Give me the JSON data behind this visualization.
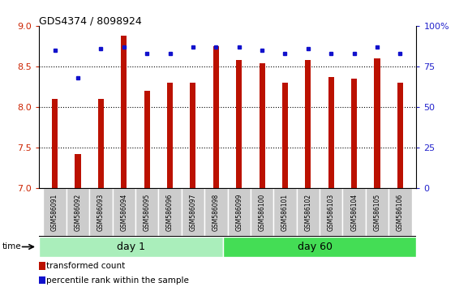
{
  "title": "GDS4374 / 8098924",
  "samples": [
    "GSM586091",
    "GSM586092",
    "GSM586093",
    "GSM586094",
    "GSM586095",
    "GSM586096",
    "GSM586097",
    "GSM586098",
    "GSM586099",
    "GSM586100",
    "GSM586101",
    "GSM586102",
    "GSM586103",
    "GSM586104",
    "GSM586105",
    "GSM586106"
  ],
  "bar_values": [
    8.1,
    7.42,
    8.1,
    8.88,
    8.2,
    8.3,
    8.3,
    8.75,
    8.58,
    8.54,
    8.3,
    8.58,
    8.37,
    8.35,
    8.6,
    8.3
  ],
  "dot_values": [
    85,
    68,
    86,
    87,
    83,
    83,
    87,
    87,
    87,
    85,
    83,
    86,
    83,
    83,
    87,
    83
  ],
  "day1_samples": 8,
  "day60_samples": 8,
  "ylim_left": [
    7,
    9
  ],
  "ylim_right": [
    0,
    100
  ],
  "yticks_left": [
    7,
    7.5,
    8,
    8.5,
    9
  ],
  "yticks_right": [
    0,
    25,
    50,
    75,
    100
  ],
  "bar_color": "#bb1100",
  "dot_color": "#1111cc",
  "bar_bottom": 7,
  "day1_color": "#aaeebb",
  "day60_color": "#44dd55",
  "label_bg_color": "#cccccc",
  "legend_bar_label": "transformed count",
  "legend_dot_label": "percentile rank within the sample",
  "time_label": "time",
  "day1_label": "day 1",
  "day60_label": "day 60",
  "grid_vals": [
    7.5,
    8.0,
    8.5
  ]
}
